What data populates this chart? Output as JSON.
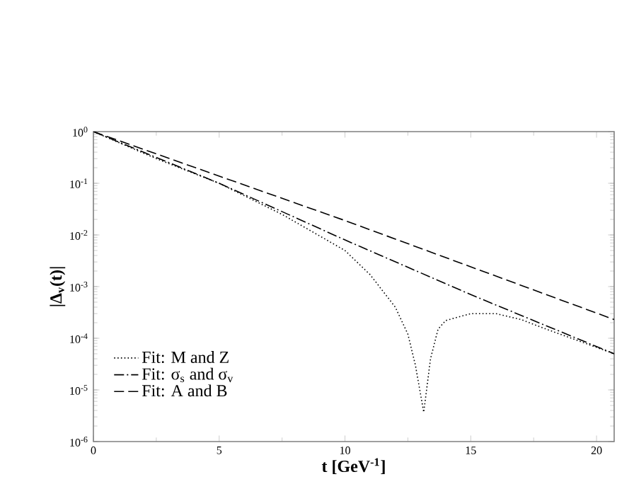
{
  "chart_data": {
    "type": "line",
    "xlabel": "**t [GeV$^{-1}$]**",
    "ylabel": "**|Δ$_{v}$(t)|**",
    "log": "y",
    "xlim": [
      0,
      20.7
    ],
    "ylim": [
      1e-06,
      1
    ],
    "xticks": [
      0,
      5,
      10,
      15,
      20
    ],
    "yticks": [
      {
        "value": 1e-06,
        "label": "10$^{-6}$"
      },
      {
        "value": 1e-05,
        "label": "10$^{-5}$"
      },
      {
        "value": 0.0001,
        "label": "10$^{-4}$"
      },
      {
        "value": 0.001,
        "label": "10$^{-3}$"
      },
      {
        "value": 0.01,
        "label": "10$^{-2}$"
      },
      {
        "value": 0.1,
        "label": "10$^{-1}$"
      },
      {
        "value": 1,
        "label": "10$^{0}$"
      }
    ],
    "legend": "bottom left",
    "grid": false,
    "marker": "none",
    "series": [
      {
        "name": "Fit: M and Z",
        "color": "#000000",
        "line_style": "dotted",
        "x": [
          0,
          2.5,
          5,
          7.5,
          10,
          11,
          12,
          12.5,
          12.8,
          13.13,
          13.4,
          13.7,
          14,
          15,
          16,
          17,
          18,
          19,
          20.7
        ],
        "values": [
          1,
          0.3,
          0.1,
          0.025,
          0.005,
          0.0017,
          0.0004,
          0.00012,
          3e-05,
          3.7e-06,
          4e-05,
          0.00015,
          0.00022,
          0.0003,
          0.0003,
          0.00023,
          0.00015,
          0.0001,
          5e-05
        ]
      },
      {
        "name": "Fit: σ$_{s}$ and σ$_{v}$",
        "color": "#000000",
        "line_style": "dashdot",
        "x": [
          0,
          5,
          10,
          15,
          20.7
        ],
        "values": [
          1,
          0.1,
          0.008,
          0.0007,
          5e-05
        ]
      },
      {
        "name": "Fit: A and B",
        "color": "#000000",
        "line_style": "dashed",
        "x": [
          0,
          10,
          20.7
        ],
        "values": [
          1,
          0.019,
          0.00023
        ]
      }
    ]
  }
}
